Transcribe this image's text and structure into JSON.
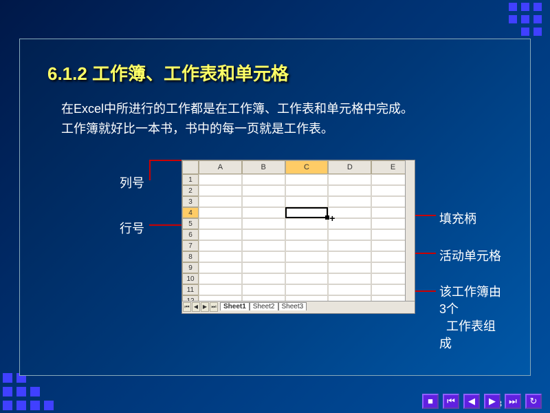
{
  "title": "6.1.2  工作簿、工作表和单元格",
  "body_line1": "在Excel中所进行的工作都是在工作簿、工作表和单元格中完成。",
  "body_line2": "工作簿就好比一本书，书中的每一页就是工作表。",
  "columns": [
    "A",
    "B",
    "C",
    "D",
    "E"
  ],
  "row_count": 12,
  "active_col_index": 2,
  "active_row": 4,
  "labels": {
    "col_header": "列号",
    "row_header": "行号",
    "fill_handle": "填充柄",
    "active_cell": "活动单元格",
    "sheet_count": "该工作簿由3个工作表组成"
  },
  "sheet_tabs": [
    "Sheet1",
    "Sheet2",
    "Sheet3"
  ],
  "page_number": "3",
  "nav_glyphs": [
    "■",
    "⏮",
    "◀",
    "▶",
    "⏭",
    "↻"
  ]
}
